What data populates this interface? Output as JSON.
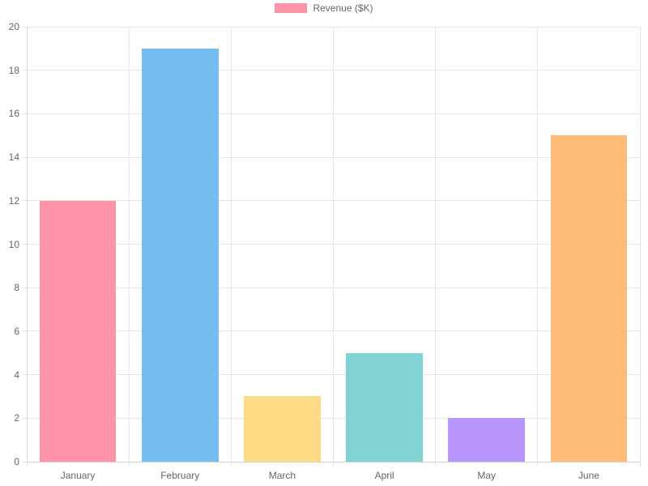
{
  "chart_data": {
    "type": "bar",
    "title": "",
    "xlabel": "",
    "ylabel": "",
    "categories": [
      "January",
      "February",
      "March",
      "April",
      "May",
      "June"
    ],
    "series": [
      {
        "name": "Revenue ($K)",
        "values": [
          12,
          19,
          3,
          5,
          2,
          15
        ],
        "colors": [
          "#FF93A8",
          "#74BFEF",
          "#FFDB86",
          "#81D2D2",
          "#B795FB",
          "#FFBB78"
        ]
      }
    ],
    "ylim": [
      0,
      20
    ],
    "yticks": [
      0,
      2,
      4,
      6,
      8,
      10,
      12,
      14,
      16,
      18,
      20
    ],
    "grid": true,
    "legend_position": "top"
  },
  "legend": {
    "label": "Revenue ($K)",
    "swatch_color": "#FF93A8"
  },
  "colors": {
    "background": "#FFFFFF",
    "gridline": "#E6E6E6",
    "axis_border": "#D4D4D4",
    "tick_label": "#666666",
    "legend_label": "#666666"
  }
}
